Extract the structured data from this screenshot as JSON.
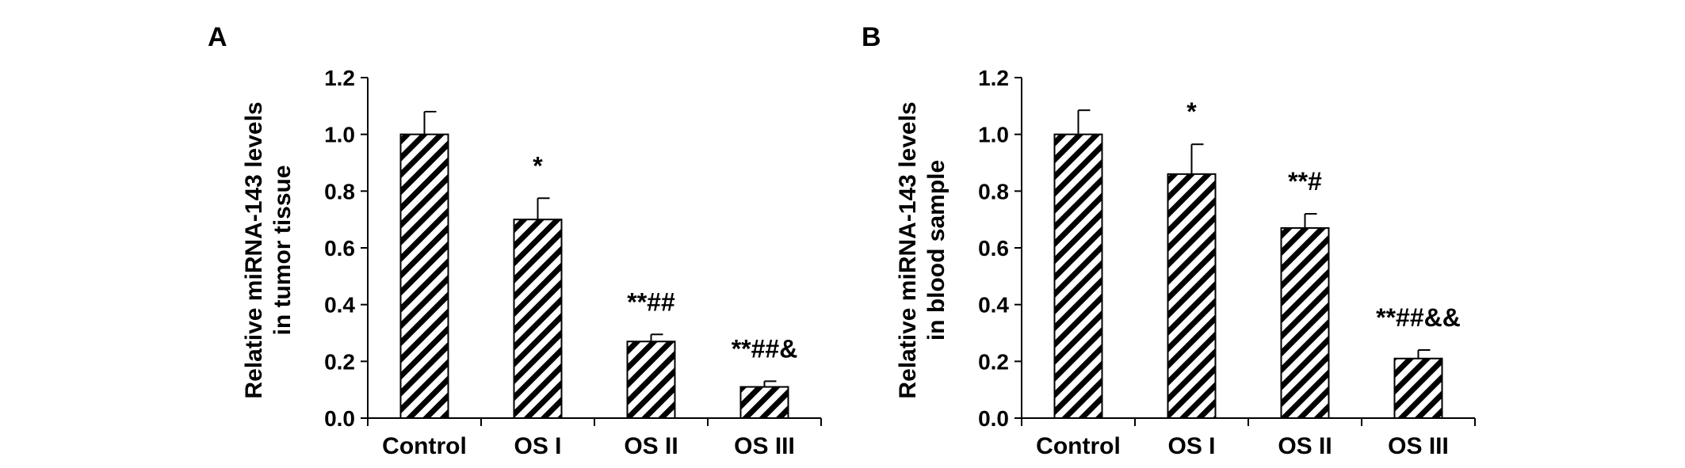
{
  "chart_data": [
    {
      "panel_label": "A",
      "type": "bar",
      "categories": [
        "Control",
        "OS I",
        "OS II",
        "OS III"
      ],
      "values": [
        1.0,
        0.7,
        0.27,
        0.11
      ],
      "errors": [
        0.08,
        0.075,
        0.025,
        0.02
      ],
      "annotations": [
        "",
        "*",
        "**##",
        "**##&"
      ],
      "ylabel_line1": "Relative miRNA-143 levels",
      "ylabel_line2": "in tumor tissue",
      "yticks": [
        "0.0",
        "0.2",
        "0.4",
        "0.6",
        "0.8",
        "1.0",
        "1.2"
      ],
      "ylim": [
        0,
        1.2
      ],
      "bar_pattern": "diagonal-hatch",
      "grid": false
    },
    {
      "panel_label": "B",
      "type": "bar",
      "categories": [
        "Control",
        "OS I",
        "OS II",
        "OS III"
      ],
      "values": [
        1.0,
        0.86,
        0.67,
        0.21
      ],
      "errors": [
        0.085,
        0.105,
        0.05,
        0.03
      ],
      "annotations": [
        "",
        "*",
        "**#",
        "**##&&"
      ],
      "ylabel_line1": "Relative miRNA-143 levels",
      "ylabel_line2": "in blood sample",
      "yticks": [
        "0.0",
        "0.2",
        "0.4",
        "0.6",
        "0.8",
        "1.0",
        "1.2"
      ],
      "ylim": [
        0,
        1.2
      ],
      "bar_pattern": "diagonal-hatch",
      "grid": false
    }
  ]
}
